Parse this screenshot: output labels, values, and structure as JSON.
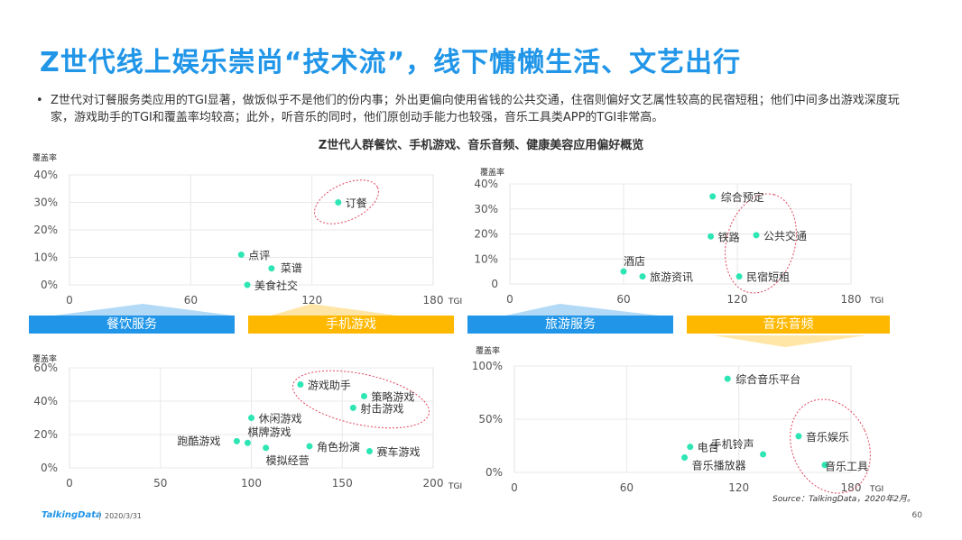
{
  "page": {
    "title": "Z世代线上娱乐崇尚“技术流”，线下慵懒生活、文艺出行",
    "bullet": "Z世代对订餐服务类应用的TGI显著，做饭似乎不是他们的份内事；外出更偏向使用省钱的公共交通，住宿则偏好文艺属性较高的民宿短租；他们中间多出游戏深度玩家，游戏助手的TGI和覆盖率均较高；此外，听音乐的同时，他们原创动手能力也较强，音乐工具类APP的TGI非常高。",
    "chart_heading": "Z世代人群餐饮、手机游戏、音乐音频、健康美容应用偏好概览",
    "source": "Source：TalkingData，2020年2月。",
    "logo": "TalkingData",
    "date": "2020/3/31",
    "page_number": "60"
  },
  "colors": {
    "title": "#2196E8",
    "point": "#2EE5B4",
    "band_blue": "#2196E8",
    "band_yellow": "#FFB800",
    "ellipse": "#E0455E"
  },
  "bands": [
    "餐饮服务",
    "手机游戏",
    "旅游服务",
    "音乐音频"
  ],
  "chart_data": [
    {
      "type": "scatter",
      "name": "餐饮服务",
      "xlabel": "TGI",
      "ylabel": "覆盖率",
      "xlim": [
        0,
        180
      ],
      "ylim": [
        0,
        40
      ],
      "xticks": [
        0,
        60,
        120,
        180
      ],
      "yticks": [
        0,
        10,
        20,
        30,
        40
      ],
      "ytick_labels": [
        "0%",
        "10%",
        "20%",
        "30%",
        "40%"
      ],
      "points": [
        {
          "label": "订餐",
          "x": 133,
          "y": 30,
          "highlight": true
        },
        {
          "label": "点评",
          "x": 85,
          "y": 11
        },
        {
          "label": "菜谱",
          "x": 100,
          "y": 6
        },
        {
          "label": "美食社交",
          "x": 88,
          "y": 0
        }
      ]
    },
    {
      "type": "scatter",
      "name": "旅游服务",
      "xlabel": "TGI",
      "ylabel": "覆盖率",
      "xlim": [
        0,
        180
      ],
      "ylim": [
        0,
        40
      ],
      "xticks": [
        0,
        60,
        120,
        180
      ],
      "yticks": [
        0,
        10,
        20,
        30,
        40
      ],
      "ytick_labels": [
        "0",
        "10%",
        "20%",
        "30%",
        "40%"
      ],
      "points": [
        {
          "label": "综合预定",
          "x": 107,
          "y": 35
        },
        {
          "label": "铁路",
          "x": 106,
          "y": 19,
          "highlight": true
        },
        {
          "label": "公共交通",
          "x": 130,
          "y": 19.5,
          "highlight": true
        },
        {
          "label": "酒店",
          "x": 60,
          "y": 5
        },
        {
          "label": "旅游资讯",
          "x": 70,
          "y": 3
        },
        {
          "label": "民宿短租",
          "x": 121,
          "y": 3,
          "highlight": true
        }
      ]
    },
    {
      "type": "scatter",
      "name": "手机游戏",
      "xlabel": "TGI",
      "ylabel": "覆盖率",
      "xlim": [
        0,
        200
      ],
      "ylim": [
        0,
        60
      ],
      "xticks": [
        0,
        50,
        100,
        150,
        200
      ],
      "yticks": [
        0,
        20,
        40,
        60
      ],
      "ytick_labels": [
        "0%",
        "20%",
        "40%",
        "60%"
      ],
      "points": [
        {
          "label": "游戏助手",
          "x": 127,
          "y": 50,
          "highlight": true
        },
        {
          "label": "策略游戏",
          "x": 162,
          "y": 43,
          "highlight": true
        },
        {
          "label": "射击游戏",
          "x": 156,
          "y": 36,
          "highlight": true
        },
        {
          "label": "休闲游戏",
          "x": 100,
          "y": 30
        },
        {
          "label": "棋牌游戏",
          "x": 98,
          "y": 15
        },
        {
          "label": "跑酷游戏",
          "x": 92,
          "y": 16
        },
        {
          "label": "角色扮演",
          "x": 132,
          "y": 13
        },
        {
          "label": "模拟经营",
          "x": 108,
          "y": 12
        },
        {
          "label": "赛车游戏",
          "x": 165,
          "y": 10
        }
      ]
    },
    {
      "type": "scatter",
      "name": "音乐音频",
      "xlabel": "TGI",
      "ylabel": "覆盖率",
      "xlim": [
        0,
        180
      ],
      "ylim": [
        0,
        100
      ],
      "xticks": [
        0,
        60,
        120,
        180
      ],
      "yticks": [
        0,
        50,
        100
      ],
      "ytick_labels": [
        "0%",
        "50%",
        "100%"
      ],
      "points": [
        {
          "label": "综合音乐平台",
          "x": 114,
          "y": 88
        },
        {
          "label": "音乐娱乐",
          "x": 152,
          "y": 34,
          "highlight": true
        },
        {
          "label": "手机铃声",
          "x": 133,
          "y": 17
        },
        {
          "label": "电台",
          "x": 94,
          "y": 24
        },
        {
          "label": "音乐播放器",
          "x": 91,
          "y": 14
        },
        {
          "label": "音乐工具",
          "x": 166,
          "y": 7,
          "highlight": true
        }
      ]
    }
  ]
}
